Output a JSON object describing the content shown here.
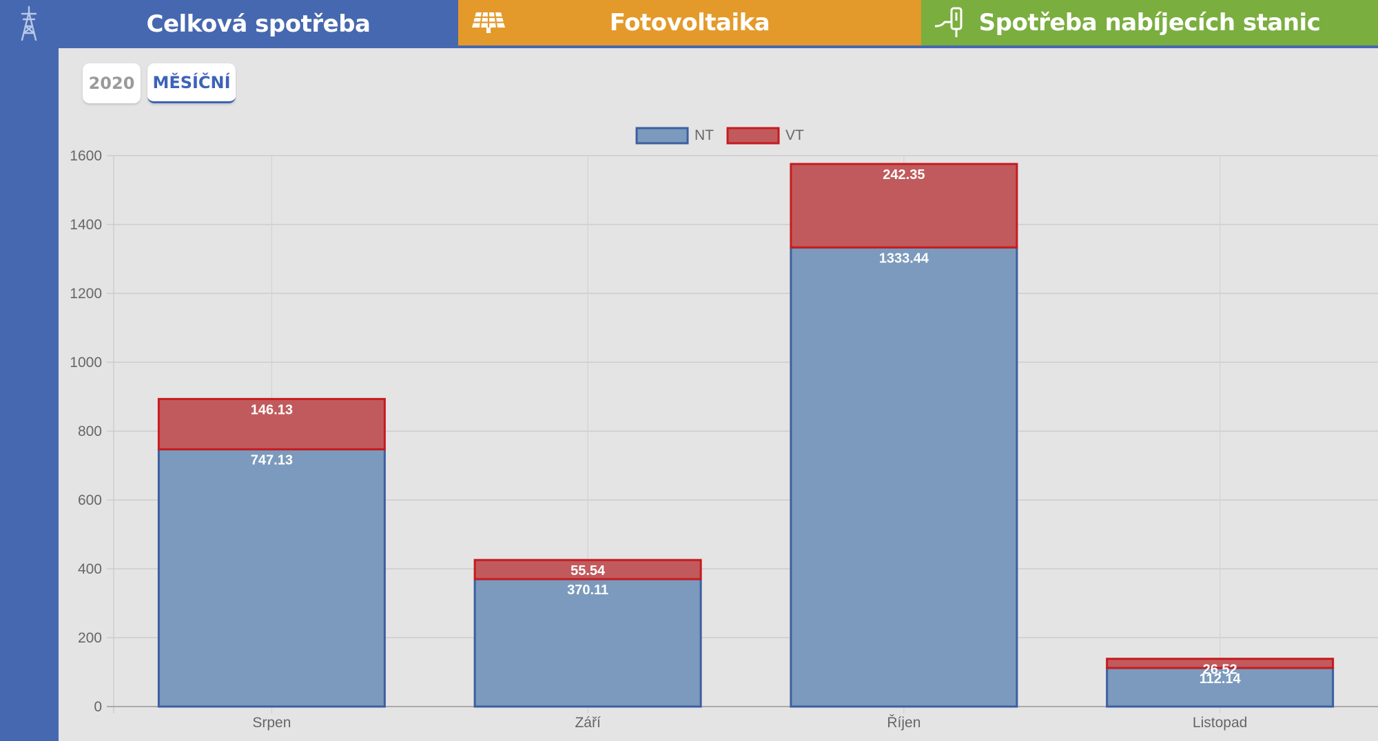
{
  "tabs": [
    {
      "label": "Celková spotřeba",
      "icon": "power-tower-icon",
      "color": "#4668b0"
    },
    {
      "label": "Fotovoltaika",
      "icon": "solar-panel-icon",
      "color": "#e39a2a"
    },
    {
      "label": "Spotřeba nabíjecích stanic",
      "icon": "charging-station-icon",
      "color": "#7aae3e"
    }
  ],
  "subtabs": {
    "year": "2020",
    "monthly": "MĚSÍČNÍ"
  },
  "colors": {
    "nt_fill": "#7b9abd",
    "nt_border": "#3d5fa0",
    "vt_fill": "#c15a5c",
    "vt_border": "#c61b1f",
    "active_subtab": "#3d63b8"
  },
  "chart_data": {
    "type": "bar",
    "stacked": true,
    "categories": [
      "Srpen",
      "Září",
      "Říjen",
      "Listopad"
    ],
    "series": [
      {
        "name": "NT",
        "values": [
          747.13,
          370.11,
          1333.44,
          112.14
        ]
      },
      {
        "name": "VT",
        "values": [
          146.13,
          55.54,
          242.35,
          26.52
        ]
      }
    ],
    "y_ticks": [
      "0",
      "200",
      "400",
      "600",
      "800",
      "1000",
      "1200",
      "1400",
      "1600"
    ],
    "ylim": [
      0,
      1600
    ],
    "grid": true,
    "legend_position": "top-center"
  }
}
